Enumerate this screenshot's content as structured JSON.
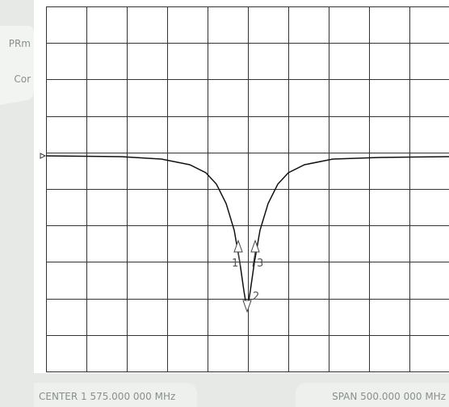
{
  "sidebar": {
    "items": [
      "PRm",
      "Cor"
    ]
  },
  "markers": [
    "1",
    "2",
    "3"
  ],
  "footer": {
    "center": "CENTER 1 575.000 000 MHz",
    "span": "SPAN 500.000 000 MHz"
  }
}
